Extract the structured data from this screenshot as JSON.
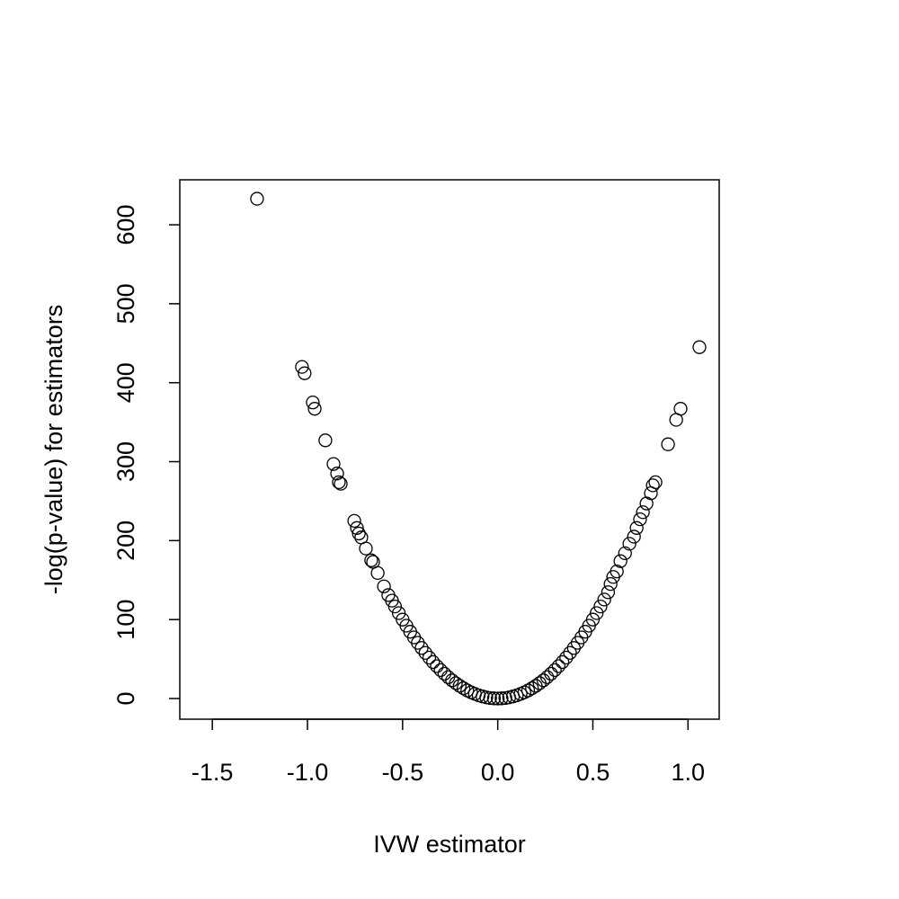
{
  "chart_data": {
    "type": "scatter",
    "x_label": "IVW estimator",
    "y_label": "-log(p-value) for estimators",
    "marker": "open-circle",
    "color": "#000000",
    "xlim": [
      -1.671,
      1.164
    ],
    "ylim": [
      -26.2,
      657
    ],
    "xticks": [
      -1.5,
      {
        "value": -1,
        "label": "-1.0"
      },
      -0.5,
      {
        "value": 0,
        "label": "0.0"
      },
      0.5,
      {
        "value": 1,
        "label": "1.0"
      }
    ],
    "yticks": [
      0,
      100,
      200,
      300,
      400,
      500,
      600
    ],
    "x": [
      -1.265,
      -1.029,
      -1.015,
      -0.972,
      -0.962,
      -0.906,
      -0.863,
      -0.844,
      -0.835,
      -0.825,
      -0.754,
      -0.74,
      -0.73,
      -0.717,
      -0.693,
      -0.665,
      -0.655,
      -0.631,
      -0.598,
      -0.575,
      -0.556,
      -0.54,
      -0.52,
      -0.5,
      -0.48,
      -0.46,
      -0.44,
      -0.42,
      -0.4,
      -0.38,
      -0.36,
      -0.34,
      -0.32,
      -0.3,
      -0.28,
      -0.26,
      -0.24,
      -0.22,
      -0.2,
      -0.18,
      -0.16,
      -0.14,
      -0.12,
      -0.1,
      -0.08,
      -0.06,
      -0.04,
      -0.02,
      0,
      0.02,
      0.04,
      0.06,
      0.08,
      0.1,
      0.12,
      0.14,
      0.16,
      0.18,
      0.2,
      0.22,
      0.24,
      0.26,
      0.28,
      0.3,
      0.32,
      0.34,
      0.36,
      0.38,
      0.4,
      0.42,
      0.44,
      0.46,
      0.48,
      0.5,
      0.52,
      0.54,
      0.56,
      0.58,
      0.593,
      0.607,
      0.626,
      0.645,
      0.669,
      0.692,
      0.716,
      0.73,
      0.748,
      0.763,
      0.782,
      0.805,
      0.815,
      0.829,
      0.895,
      0.938,
      0.961,
      1.06
    ],
    "values": [
      633,
      420,
      412,
      375,
      367,
      327,
      297,
      285,
      274,
      272,
      225,
      216,
      209,
      204,
      190,
      175,
      173,
      159,
      142,
      131,
      124,
      116.6,
      108.2,
      100,
      92.2,
      84.6,
      77.4,
      70.6,
      64,
      57.8,
      51.8,
      46.2,
      41,
      36,
      31.4,
      27,
      23,
      19.4,
      16,
      13,
      10.2,
      7.8,
      5.8,
      4,
      2.6,
      1.4,
      0.6,
      0.2,
      0,
      0.2,
      0.6,
      1.4,
      2.6,
      4,
      5.8,
      7.8,
      10.2,
      13,
      16,
      19.4,
      23,
      27,
      31.4,
      36,
      41,
      46.2,
      51.8,
      57.8,
      64,
      70.6,
      77.4,
      84.6,
      92.2,
      100,
      108.2,
      116.6,
      125.4,
      134.6,
      145,
      154,
      161,
      174,
      184,
      196,
      205,
      216,
      227,
      236,
      247,
      260,
      270,
      274,
      322,
      353,
      367,
      445
    ]
  }
}
